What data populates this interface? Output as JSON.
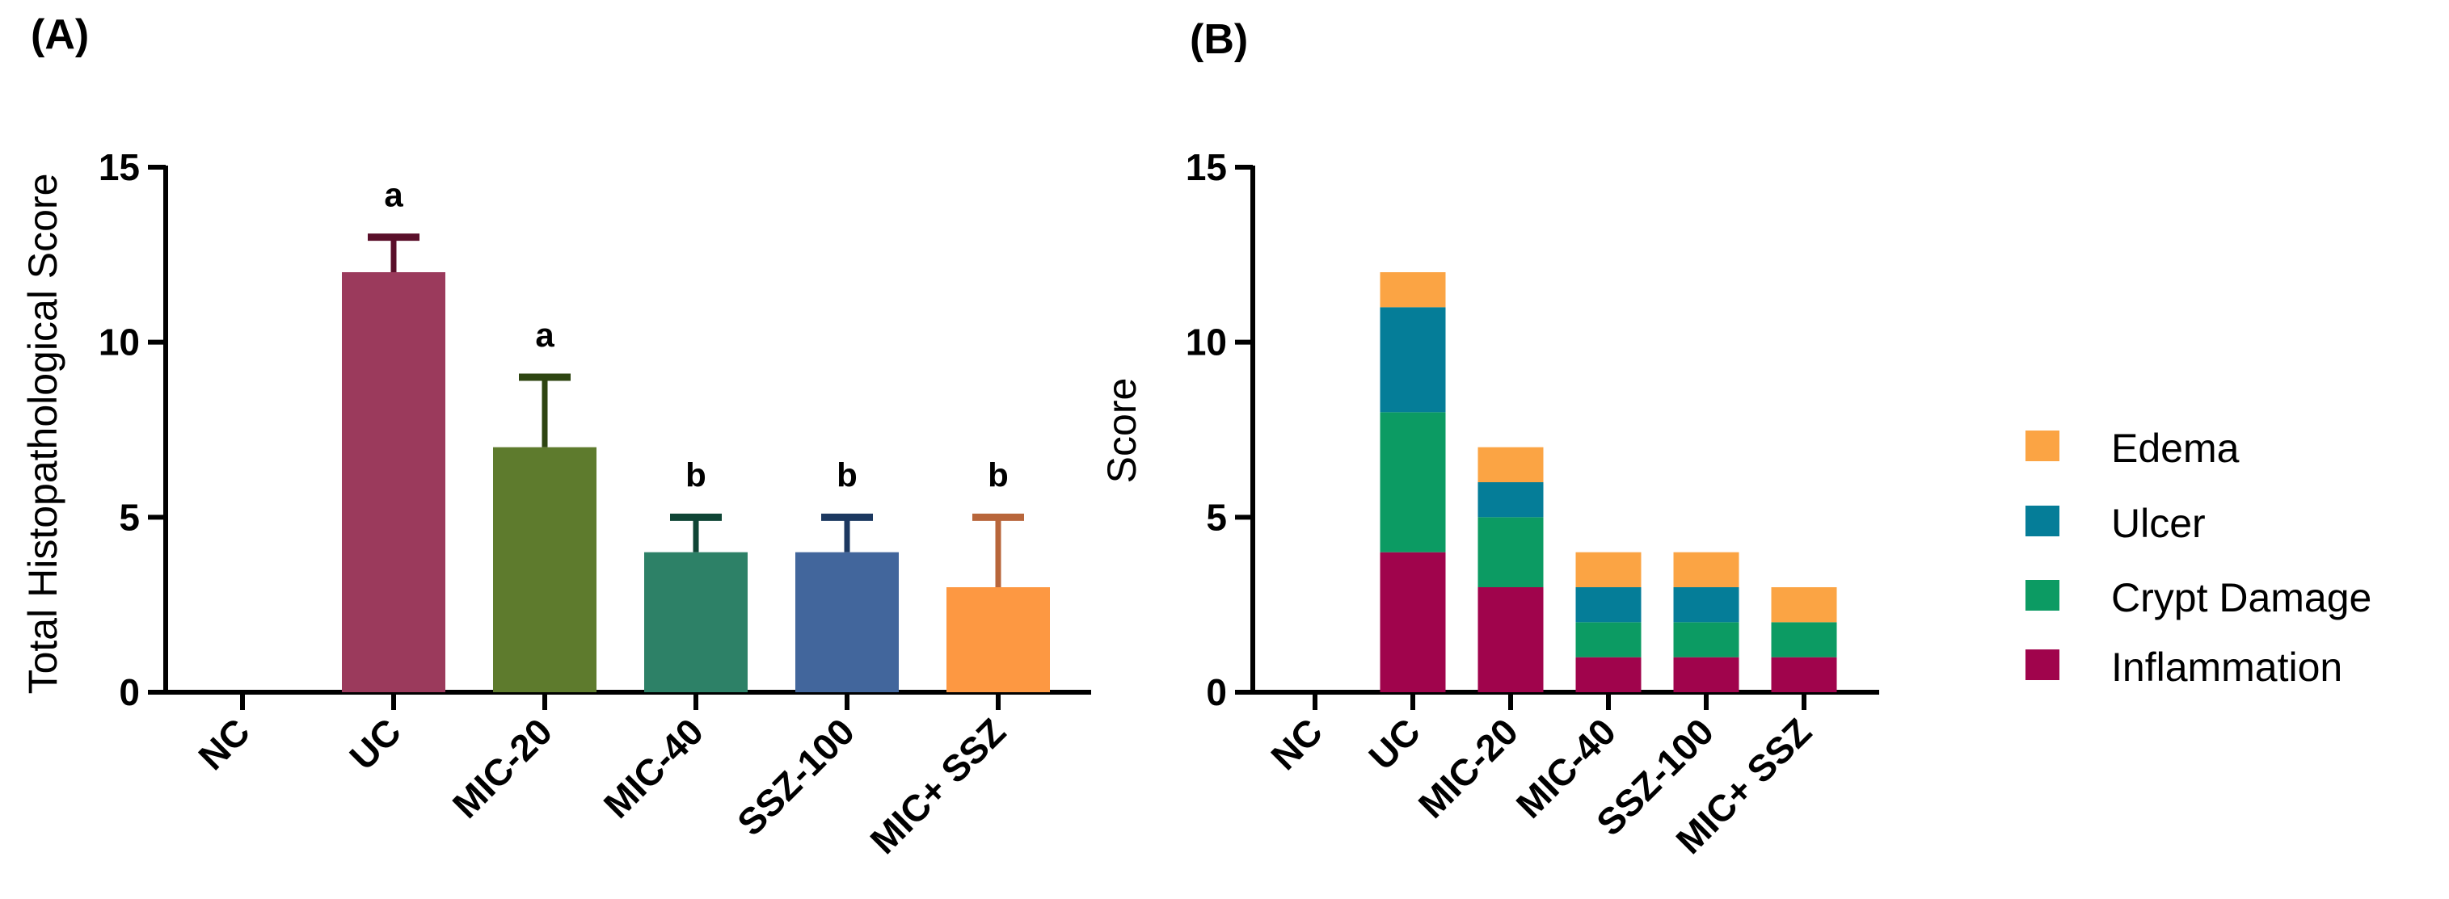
{
  "chart_data": [
    {
      "panel": "(A)",
      "type": "bar",
      "ylabel": "Total Histopathological Score",
      "xlabel": "",
      "ylim": [
        0,
        15
      ],
      "yticks": [
        0,
        5,
        10,
        15
      ],
      "categories": [
        "NC",
        "UC",
        "MIC-20",
        "MIC-40",
        "SSZ-100",
        "MIC+ SSZ"
      ],
      "values": [
        0,
        12,
        7,
        4,
        4,
        3
      ],
      "errors": [
        0,
        1,
        2,
        1,
        1,
        2
      ],
      "significance": [
        "",
        "a",
        "a",
        "b",
        "b",
        "b"
      ],
      "colors": [
        "#ffffff",
        "#9b3a5c",
        "#5e7b2d",
        "#2d8167",
        "#42669c",
        "#fd9842"
      ],
      "error_colors": [
        "#000000",
        "#5a0f2a",
        "#2e4511",
        "#0f4535",
        "#1c3860",
        "#b8663b"
      ]
    },
    {
      "panel": "(B)",
      "type": "bar",
      "stacked": true,
      "ylabel": "Score",
      "xlabel": "",
      "ylim": [
        0,
        15
      ],
      "yticks": [
        0,
        5,
        10,
        15
      ],
      "categories": [
        "NC",
        "UC",
        "MIC-20",
        "MIC-40",
        "SSZ-100",
        "MIC+ SSZ"
      ],
      "series": [
        {
          "name": "Inflammation",
          "color": "#a0044c",
          "values": [
            0,
            4,
            3,
            1,
            1,
            1
          ]
        },
        {
          "name": "Crypt Damage",
          "color": "#0c9b63",
          "values": [
            0,
            4,
            2,
            1,
            1,
            1
          ]
        },
        {
          "name": "Ulcer",
          "color": "#057d98",
          "values": [
            0,
            3,
            1,
            1,
            1,
            0
          ]
        },
        {
          "name": "Edema",
          "color": "#fba444",
          "values": [
            0,
            1,
            1,
            1,
            1,
            1
          ]
        }
      ],
      "legend_order": [
        "Edema",
        "Ulcer",
        "Crypt Damage",
        "Inflammation"
      ],
      "legend_position": "right"
    }
  ]
}
